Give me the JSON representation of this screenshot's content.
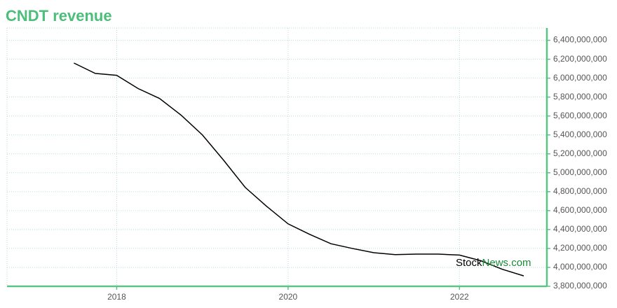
{
  "chart_data": {
    "type": "line",
    "title": "CNDT revenue",
    "x": [
      2017.5,
      2017.75,
      2018.0,
      2018.25,
      2018.5,
      2018.75,
      2019.0,
      2019.25,
      2019.5,
      2019.75,
      2020.0,
      2020.25,
      2020.5,
      2020.75,
      2021.0,
      2021.25,
      2021.5,
      2021.75,
      2022.0,
      2022.25,
      2022.5,
      2022.75
    ],
    "series": [
      {
        "name": "CNDT revenue",
        "color": "#000000",
        "values": [
          6160000000,
          6050000000,
          6030000000,
          5890000000,
          5785000000,
          5610000000,
          5400000000,
          5130000000,
          4845000000,
          4645000000,
          4460000000,
          4350000000,
          4250000000,
          4200000000,
          4155000000,
          4135000000,
          4140000000,
          4140000000,
          4130000000,
          4070000000,
          3980000000,
          3910000000
        ]
      }
    ],
    "xlim": [
      2016.72,
      2023.02
    ],
    "xticks": [
      2018,
      2020,
      2022
    ],
    "ylim": [
      3800000000,
      6530000000
    ],
    "yticks": [
      {
        "value": 3800000000,
        "label": "3,800,000,000"
      },
      {
        "value": 4000000000,
        "label": "4,000,000,000"
      },
      {
        "value": 4200000000,
        "label": "4,200,000,000"
      },
      {
        "value": 4400000000,
        "label": "4,400,000,000"
      },
      {
        "value": 4600000000,
        "label": "4,600,000,000"
      },
      {
        "value": 4800000000,
        "label": "4,800,000,000"
      },
      {
        "value": 5000000000,
        "label": "5,000,000,000"
      },
      {
        "value": 5200000000,
        "label": "5,200,000,000"
      },
      {
        "value": 5400000000,
        "label": "5,400,000,000"
      },
      {
        "value": 5600000000,
        "label": "5,600,000,000"
      },
      {
        "value": 5800000000,
        "label": "5,800,000,000"
      },
      {
        "value": 6000000000,
        "label": "6,000,000,000"
      },
      {
        "value": 6200000000,
        "label": "6,200,000,000"
      },
      {
        "value": 6400000000,
        "label": "6,400,000,000"
      }
    ],
    "grid": true,
    "watermark": {
      "left": "Stock",
      "right": "News.com"
    }
  }
}
